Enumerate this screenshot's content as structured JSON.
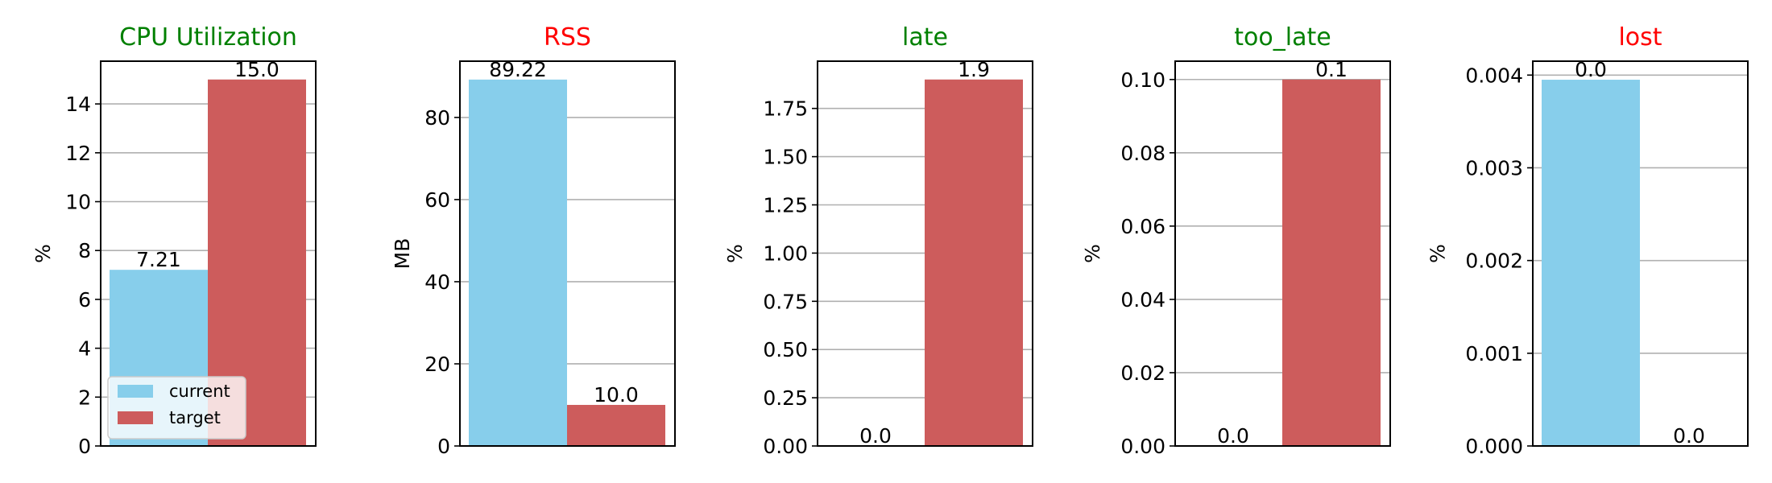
{
  "legend": {
    "placement": "lower-left",
    "items": [
      {
        "label": "current",
        "color": "#87CEEB"
      },
      {
        "label": "target",
        "color": "#CD5C5C"
      }
    ]
  },
  "colors": {
    "current": "#87CEEB",
    "target": "#CD5C5C",
    "title_ok": "#008000",
    "title_bad": "#FF0000"
  },
  "chart_data": [
    {
      "type": "bar",
      "title": "CPU Utilization",
      "title_color": "#008000",
      "ylabel": "%",
      "categories": [
        "current",
        "target"
      ],
      "values": [
        7.21,
        15.0
      ],
      "bar_labels": [
        "7.21",
        "15.0"
      ],
      "ylim": [
        0,
        15.75
      ],
      "yticks": [
        0,
        2,
        4,
        6,
        8,
        10,
        12,
        14
      ],
      "ytick_labels": [
        "0",
        "2",
        "4",
        "6",
        "8",
        "10",
        "12",
        "14"
      ],
      "grid": true,
      "legend": true
    },
    {
      "type": "bar",
      "title": "RSS",
      "title_color": "#FF0000",
      "ylabel": "MB",
      "categories": [
        "current",
        "target"
      ],
      "values": [
        89.22,
        10.0
      ],
      "bar_labels": [
        "89.22",
        "10.0"
      ],
      "ylim": [
        0,
        93.7
      ],
      "yticks": [
        0,
        20,
        40,
        60,
        80
      ],
      "ytick_labels": [
        "0",
        "20",
        "40",
        "60",
        "80"
      ],
      "grid": true,
      "legend": false
    },
    {
      "type": "bar",
      "title": "late",
      "title_color": "#008000",
      "ylabel": "%",
      "categories": [
        "current",
        "target"
      ],
      "values": [
        0.0,
        1.9
      ],
      "bar_labels": [
        "0.0",
        "1.9"
      ],
      "ylim": [
        0,
        1.995
      ],
      "yticks": [
        0,
        0.25,
        0.5,
        0.75,
        1.0,
        1.25,
        1.5,
        1.75
      ],
      "ytick_labels": [
        "0.00",
        "0.25",
        "0.50",
        "0.75",
        "1.00",
        "1.25",
        "1.50",
        "1.75"
      ],
      "grid": true,
      "legend": false
    },
    {
      "type": "bar",
      "title": "too_late",
      "title_color": "#008000",
      "ylabel": "%",
      "categories": [
        "current",
        "target"
      ],
      "values": [
        0.0,
        0.1
      ],
      "bar_labels": [
        "0.0",
        "0.1"
      ],
      "ylim": [
        0,
        0.105
      ],
      "yticks": [
        0,
        0.02,
        0.04,
        0.06,
        0.08,
        0.1
      ],
      "ytick_labels": [
        "0.00",
        "0.02",
        "0.04",
        "0.06",
        "0.08",
        "0.10"
      ],
      "grid": true,
      "legend": false
    },
    {
      "type": "bar",
      "title": "lost",
      "title_color": "#FF0000",
      "ylabel": "%",
      "categories": [
        "current",
        "target"
      ],
      "values": [
        0.00395,
        0.0
      ],
      "bar_labels": [
        "0.0",
        "0.0"
      ],
      "ylim": [
        0,
        0.00415
      ],
      "yticks": [
        0,
        0.001,
        0.002,
        0.003,
        0.004
      ],
      "ytick_labels": [
        "0.000",
        "0.001",
        "0.002",
        "0.003",
        "0.004"
      ],
      "grid": true,
      "legend": false
    }
  ]
}
